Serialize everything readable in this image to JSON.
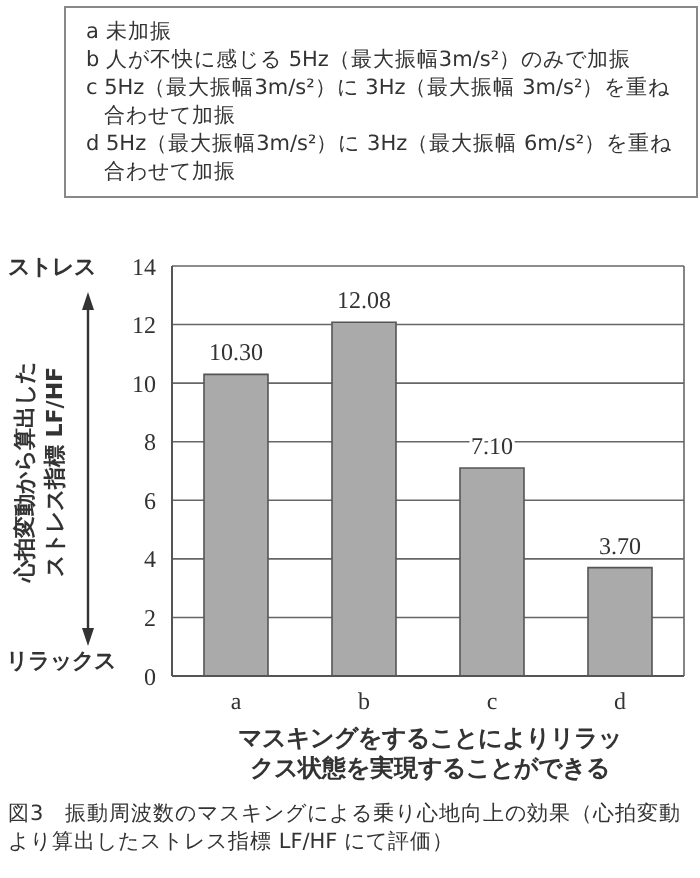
{
  "chart_data": {
    "type": "bar",
    "xlabel": "マスキングをすることによりリラックス状態を実現することができる",
    "ylabel": "心拍変動から算出したストレス指標 LF/HF",
    "categories": [
      "a",
      "b",
      "c",
      "d"
    ],
    "values": [
      10.3,
      12.08,
      7.1,
      3.7
    ],
    "value_labels": [
      "10.30",
      "12.08",
      "7.10",
      "3.70"
    ],
    "color": "#aaaaaa",
    "ylim": [
      0,
      14
    ],
    "yticks": [
      0,
      2,
      4,
      6,
      8,
      10,
      12,
      14
    ],
    "grid": "y",
    "legend": false,
    "annotations": [
      "a 未加振",
      "b 人が不快に感じる 5Hz（最大振幅3m/s²）のみで加振",
      "c 5Hz（最大振幅3m/s²）に 3Hz（最大振幅 3m/s²）を重ね合わせて加振",
      "d 5Hz（最大振幅3m/s²）に 3Hz（最大振幅 6m/s²）を重ね合わせて加振",
      "ストレス",
      "リラックス",
      "図3　振動周波数のマスキングによる乗り心地向上の効果（心拍変動より算出したストレス指標 LF/HF にて評価）"
    ]
  }
}
